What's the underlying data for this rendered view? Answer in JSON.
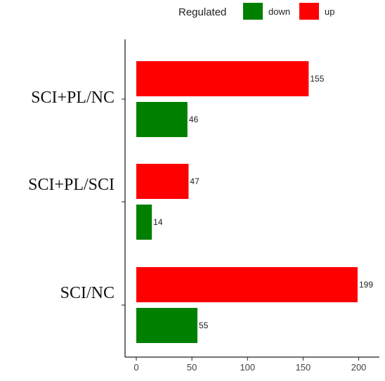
{
  "legend": {
    "title": "Regulated",
    "items": [
      {
        "label": "down",
        "color": "#008000"
      },
      {
        "label": "up",
        "color": "#ff0000"
      }
    ]
  },
  "chart_data": {
    "type": "bar",
    "orientation": "horizontal",
    "categories": [
      "SCI+PL/NC",
      "SCI+PL/SCI",
      "SCI/NC"
    ],
    "series": [
      {
        "name": "up",
        "color": "#ff0000",
        "values": [
          155,
          47,
          199
        ]
      },
      {
        "name": "down",
        "color": "#008000",
        "values": [
          46,
          14,
          55
        ]
      }
    ],
    "xticks": [
      0,
      50,
      100,
      150,
      200
    ],
    "xlim": [
      0,
      210
    ],
    "title": "",
    "xlabel": "",
    "ylabel": "",
    "legend_position": "top",
    "grid": false
  }
}
